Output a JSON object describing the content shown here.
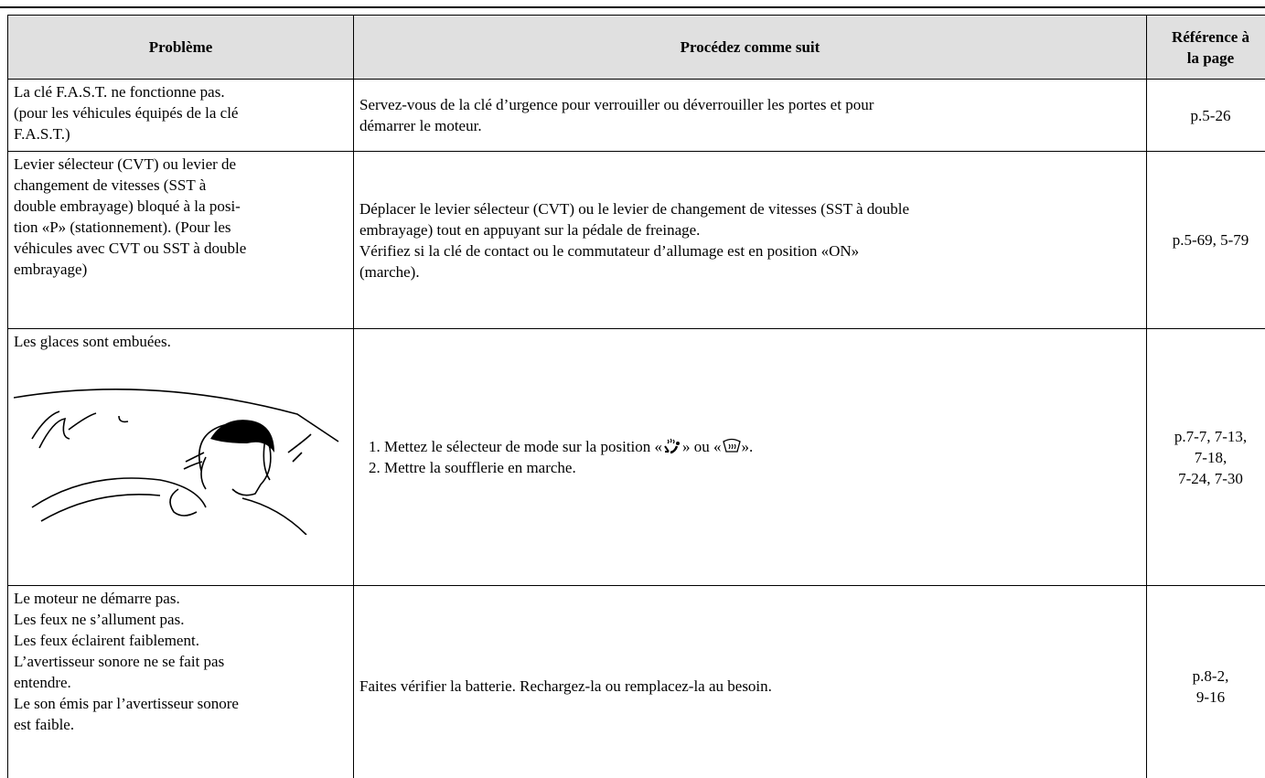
{
  "table": {
    "header": [
      "Problème",
      "Procédez comme suit",
      [
        "Référence à",
        "la page"
      ]
    ],
    "rows": [
      {
        "problem": [
          "La clé F.A.S.T. ne fonctionne pas.",
          "(pour les véhicules équipés de la clé",
          "F.A.S.T.)"
        ],
        "procedure": [
          "Servez-vous de la clé d’urgence pour verrouiller ou déverrouiller les portes et pour",
          "démarrer le moteur."
        ],
        "reference": [
          "p.5-26"
        ]
      },
      {
        "problem": [
          "Levier sélecteur (CVT) ou levier de",
          "changement de vitesses (SST à",
          "double embrayage) bloqué à la posi-",
          "tion «P» (stationnement). (Pour les",
          "véhicules avec CVT ou SST à double",
          "embrayage)"
        ],
        "procedure": [
          "Déplacer le levier sélecteur (CVT) ou le levier de changement de vitesses (SST à double",
          "embrayage) tout en appuyant sur la pédale de freinage.",
          "Vérifiez si la clé de contact ou le commutateur d’allumage est en position «ON»",
          "(marche)."
        ],
        "reference": [
          "p.5-69, 5-79"
        ]
      },
      {
        "problem": [
          "Les glaces sont embuées."
        ],
        "procedure_steps": [
          [
            "1. Mettez le sélecteur de mode sur la position «",
            "» ou «",
            "»."
          ],
          [
            "2. Mettre la soufflerie en marche."
          ]
        ],
        "reference": [
          "p.7-7, 7-13,",
          "7-18,",
          "7-24, 7-30"
        ]
      },
      {
        "problem": [
          "Le moteur ne démarre pas.",
          "Les feux ne s’allument pas.",
          "Les feux éclairent faiblement.",
          "L’avertisseur sonore ne se fait pas",
          "entendre.",
          "Le son émis par l’avertisseur sonore",
          "est faible."
        ],
        "procedure": [
          "Faites vérifier la batterie. Rechargez-la ou remplacez-la au besoin."
        ],
        "reference": [
          "p.8-2,",
          "9-16"
        ]
      }
    ]
  }
}
